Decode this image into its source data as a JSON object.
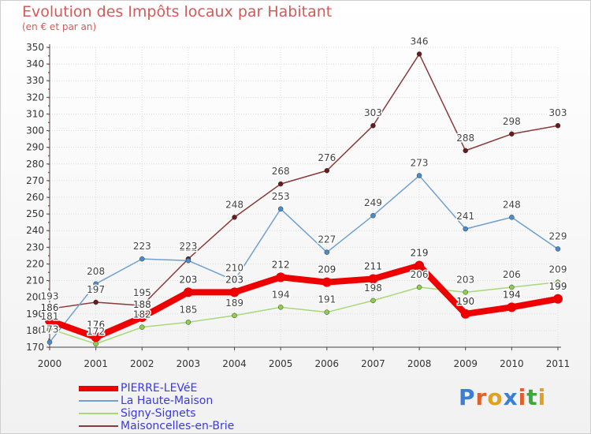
{
  "header": {
    "title": "Evolution des Impôts locaux par Habitant",
    "subtitle": "(en € et par an)"
  },
  "brand": {
    "letters": [
      "P",
      "r",
      "o",
      "x",
      "i",
      "t",
      "i"
    ],
    "colors": [
      "#3b7fd4",
      "#e0602a",
      "#e0a020",
      "#3b7fd4",
      "#e0602a",
      "#3baa3b",
      "#e0a020"
    ]
  },
  "chart_data": {
    "type": "line",
    "title": "Evolution des Impôts locaux par Habitant",
    "subtitle": "(en € et par an)",
    "x": [
      2000,
      2001,
      2002,
      2003,
      2004,
      2005,
      2006,
      2007,
      2008,
      2009,
      2010,
      2011
    ],
    "ylim": [
      170,
      350
    ],
    "yticks": [
      170,
      180,
      190,
      200,
      210,
      220,
      230,
      240,
      250,
      260,
      270,
      280,
      290,
      300,
      310,
      320,
      330,
      340,
      350
    ],
    "grid": true,
    "legend_position": "bottom-left",
    "series": [
      {
        "name": "PIERRE-LEVéE",
        "color": "#ee0000",
        "point_color": "#ee0000",
        "label_color": "#ffffff",
        "thick": true,
        "values": [
          186,
          176,
          188,
          203,
          203,
          212,
          209,
          211,
          219,
          190,
          194,
          199
        ]
      },
      {
        "name": "La Haute-Maison",
        "color": "#6fa0d0",
        "point_color": "#4a8ad0",
        "label_color": "#555555",
        "thick": false,
        "values": [
          173,
          208,
          223,
          222,
          210,
          253,
          227,
          249,
          273,
          241,
          248,
          229
        ]
      },
      {
        "name": "Signy-Signets",
        "color": "#a8d878",
        "point_color": "#8cd04a",
        "label_color": "#555555",
        "thick": false,
        "values": [
          181,
          172,
          182,
          185,
          189,
          194,
          191,
          198,
          206,
          203,
          206,
          209
        ]
      },
      {
        "name": "Maisoncelles-en-Brie",
        "color": "#8a3a3a",
        "point_color": "#6a1a1a",
        "label_color": "#555555",
        "thick": false,
        "values": [
          193,
          197,
          195,
          223,
          248,
          268,
          276,
          303,
          346,
          288,
          298,
          303
        ]
      }
    ]
  }
}
